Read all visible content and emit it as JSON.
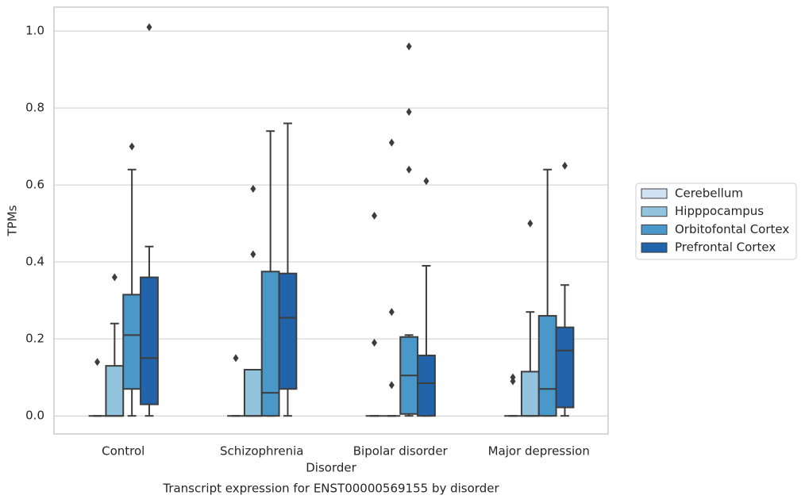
{
  "chart_data": {
    "type": "box",
    "title": "Transcript expression for ENST00000569155 by disorder",
    "x_label": "Disorder",
    "y_label": "TPMs",
    "categories": [
      "Control",
      "Schizophrenia",
      "Bipolar disorder",
      "Major depression"
    ],
    "ylim": [
      -0.047,
      1.062
    ],
    "yticks": [
      {
        "value": 0,
        "label": "0.0"
      },
      0.2,
      0.4,
      0.6,
      0.8,
      {
        "value": 1,
        "label": "1.0"
      }
    ],
    "grid": true,
    "legend": "center right",
    "series": [
      {
        "name": "Cerebellum",
        "color": "#cfe1f2",
        "boxes": [
          {
            "min": 0,
            "q1": 0,
            "median": 0,
            "q3": 0,
            "max": 0,
            "outliers": [
              0.14
            ]
          },
          {
            "min": 0,
            "q1": 0,
            "median": 0,
            "q3": 0,
            "max": 0,
            "outliers": [
              0.15
            ]
          },
          {
            "min": 0,
            "q1": 0,
            "median": 0,
            "q3": 0,
            "max": 0,
            "outliers": [
              0.19,
              0.52
            ]
          },
          {
            "min": 0,
            "q1": 0,
            "median": 0,
            "q3": 0,
            "max": 0,
            "outliers": [
              0.09,
              0.1
            ]
          }
        ]
      },
      {
        "name": "Hipppocampus",
        "color": "#93c4de",
        "boxes": [
          {
            "min": 0,
            "q1": 0,
            "median": 0,
            "q3": 0.13,
            "max": 0.24,
            "outliers": [
              0.36
            ]
          },
          {
            "min": 0,
            "q1": 0,
            "median": 0,
            "q3": 0.12,
            "max": 0.12,
            "outliers": [
              0.42,
              0.59
            ]
          },
          {
            "min": 0,
            "q1": 0,
            "median": 0,
            "q3": 0,
            "max": 0,
            "outliers": [
              0.08,
              0.27,
              0.71
            ]
          },
          {
            "min": 0,
            "q1": 0,
            "median": 0,
            "q3": 0.115,
            "max": 0.27,
            "outliers": [
              0.5
            ]
          }
        ]
      },
      {
        "name": "Orbitofontal Cortex",
        "color": "#4a98c9",
        "boxes": [
          {
            "min": 0,
            "q1": 0.07,
            "median": 0.21,
            "q3": 0.315,
            "max": 0.64,
            "outliers": [
              0.7
            ]
          },
          {
            "min": 0,
            "q1": 0,
            "median": 0.06,
            "q3": 0.375,
            "max": 0.74,
            "outliers": []
          },
          {
            "min": 0,
            "q1": 0.005,
            "median": 0.105,
            "q3": 0.205,
            "max": 0.21,
            "outliers": [
              0.64,
              0.79,
              0.96
            ]
          },
          {
            "min": 0,
            "q1": 0,
            "median": 0.07,
            "q3": 0.26,
            "max": 0.64,
            "outliers": []
          }
        ]
      },
      {
        "name": "Prefrontal Cortex",
        "color": "#2164ab",
        "boxes": [
          {
            "min": 0,
            "q1": 0.03,
            "median": 0.15,
            "q3": 0.36,
            "max": 0.44,
            "outliers": [
              1.01
            ]
          },
          {
            "min": 0,
            "q1": 0.07,
            "median": 0.255,
            "q3": 0.37,
            "max": 0.76,
            "outliers": []
          },
          {
            "min": 0,
            "q1": 0,
            "median": 0.085,
            "q3": 0.157,
            "max": 0.39,
            "outliers": [
              0.61
            ]
          },
          {
            "min": 0,
            "q1": 0.022,
            "median": 0.17,
            "q3": 0.23,
            "max": 0.34,
            "outliers": [
              0.65
            ]
          }
        ]
      }
    ]
  }
}
